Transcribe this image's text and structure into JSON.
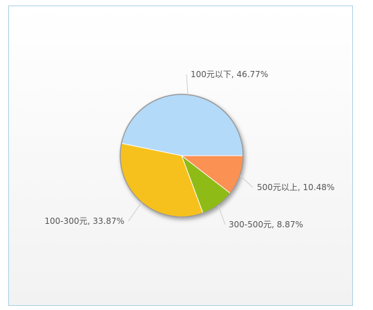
{
  "chart_data": {
    "type": "pie",
    "categories": [
      "100元以下",
      "100-300元",
      "300-500元",
      "500元以上"
    ],
    "values": [
      46.77,
      33.87,
      8.87,
      10.48
    ],
    "value_labels": [
      "46.77%",
      "33.87%",
      "8.87%",
      "10.48%"
    ],
    "label_separator": ", ",
    "colors": [
      "#b3daf8",
      "#f6c11f",
      "#8fbb12",
      "#fb9152"
    ]
  }
}
